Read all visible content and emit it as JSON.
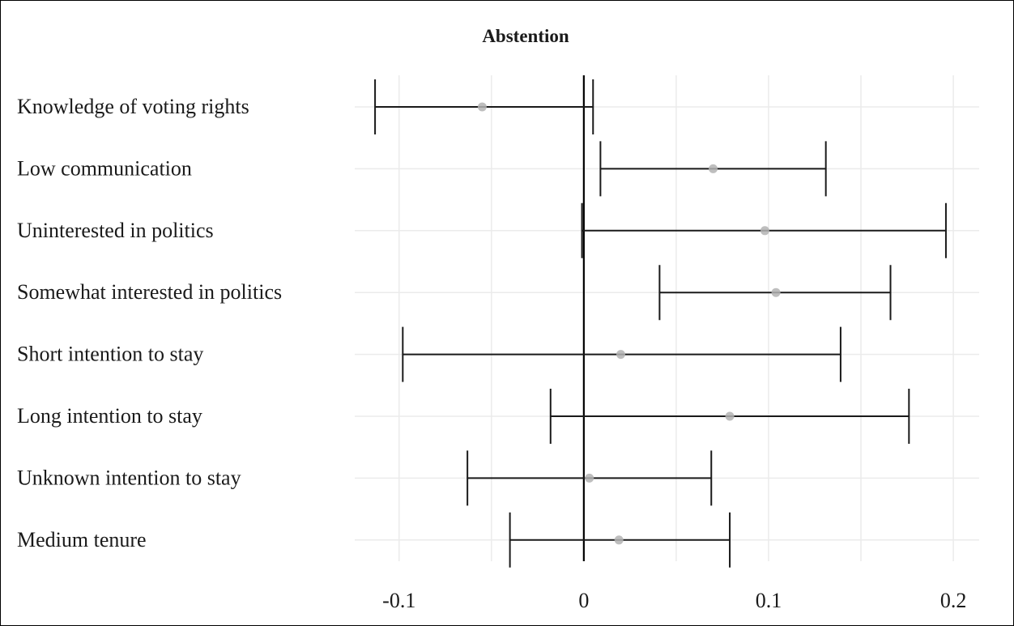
{
  "colors": {
    "grid": "#ebebeb",
    "errorbar": "#1a1a1a",
    "point": "#b3b3b3",
    "zero_line": "#000000"
  },
  "chart_data": {
    "type": "scatter",
    "title": "Abstention",
    "xlabel": "",
    "ylabel": "",
    "xlim": [
      -0.124,
      0.214
    ],
    "xticks": [
      -0.1,
      0,
      0.1,
      0.2
    ],
    "xtick_labels": [
      "-0.1",
      "0",
      "0.1",
      "0.2"
    ],
    "grid": true,
    "reference_line": 0,
    "categories": [
      "Knowledge of voting rights",
      "Low communication",
      "Uninterested in politics",
      "Somewhat interested in politics",
      "Short intention to stay",
      "Long intention to stay",
      "Unknown intention to stay",
      "Medium tenure"
    ],
    "estimates": [
      -0.055,
      0.07,
      0.098,
      0.104,
      0.02,
      0.079,
      0.003,
      0.019
    ],
    "ci_low": [
      -0.113,
      0.009,
      -0.001,
      0.041,
      -0.098,
      -0.018,
      -0.063,
      -0.04
    ],
    "ci_high": [
      0.005,
      0.131,
      0.196,
      0.166,
      0.139,
      0.176,
      0.069,
      0.079
    ]
  }
}
